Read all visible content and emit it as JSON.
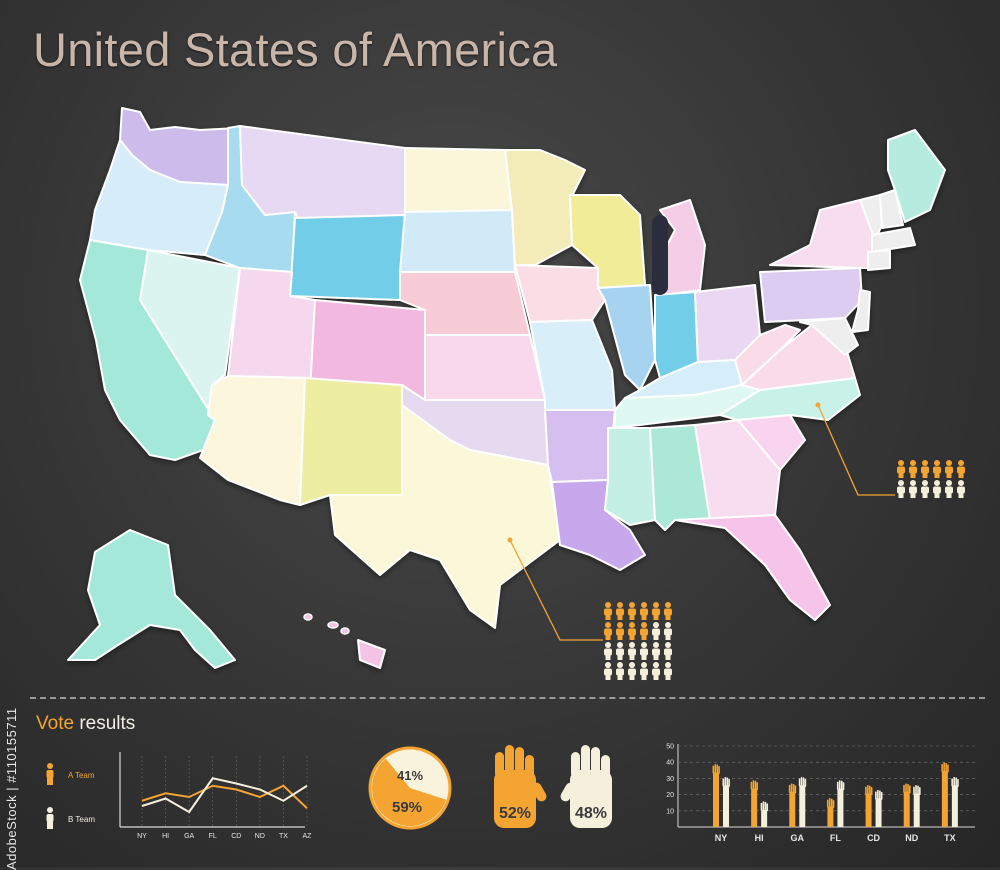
{
  "header": {
    "title": "United States of America"
  },
  "watermark": "AdobeStock | #110155711",
  "colors": {
    "background": "#353535",
    "team_a": "#f4a431",
    "team_b": "#f5f0dc",
    "title": "#c9b6a8",
    "state_outline": "#ffffff"
  },
  "map": {
    "states": [
      {
        "name": "Washington",
        "color": "#cdbbec"
      },
      {
        "name": "Oregon",
        "color": "#d6ecf8"
      },
      {
        "name": "California",
        "color": "#a3e8d8"
      },
      {
        "name": "Nevada",
        "color": "#dcf4f0"
      },
      {
        "name": "Idaho",
        "color": "#a6dbf0"
      },
      {
        "name": "Montana",
        "color": "#e7d8f3"
      },
      {
        "name": "Wyoming",
        "color": "#72cde8"
      },
      {
        "name": "Utah",
        "color": "#f6d8ee"
      },
      {
        "name": "Arizona",
        "color": "#fbf6dc"
      },
      {
        "name": "Colorado",
        "color": "#f2b8e0"
      },
      {
        "name": "New Mexico",
        "color": "#eeeea2"
      },
      {
        "name": "North Dakota",
        "color": "#fbf6da"
      },
      {
        "name": "South Dakota",
        "color": "#d0eaf8"
      },
      {
        "name": "Nebraska",
        "color": "#f8ccd6"
      },
      {
        "name": "Kansas",
        "color": "#f8d8ea"
      },
      {
        "name": "Oklahoma",
        "color": "#e6daf0"
      },
      {
        "name": "Texas",
        "color": "#fbf8da"
      },
      {
        "name": "Minnesota",
        "color": "#f3ecb8"
      },
      {
        "name": "Iowa",
        "color": "#fbdde6"
      },
      {
        "name": "Missouri",
        "color": "#d8eef8"
      },
      {
        "name": "Arkansas",
        "color": "#d6bff0"
      },
      {
        "name": "Louisiana",
        "color": "#c7a8ec"
      },
      {
        "name": "Wisconsin",
        "color": "#f1ec96"
      },
      {
        "name": "Illinois",
        "color": "#a6d4f0"
      },
      {
        "name": "Michigan",
        "color": "#f5cde6"
      },
      {
        "name": "Indiana",
        "color": "#72cde8"
      },
      {
        "name": "Ohio",
        "color": "#ead8f3"
      },
      {
        "name": "Kentucky",
        "color": "#d6eefa"
      },
      {
        "name": "Tennessee",
        "color": "#dff8f2"
      },
      {
        "name": "Mississippi",
        "color": "#c4f0e4"
      },
      {
        "name": "Alabama",
        "color": "#ace8d6"
      },
      {
        "name": "Georgia",
        "color": "#f8ddf0"
      },
      {
        "name": "Florida",
        "color": "#f6c4e8"
      },
      {
        "name": "South Carolina",
        "color": "#f8d4ee"
      },
      {
        "name": "North Carolina",
        "color": "#c8f2e8"
      },
      {
        "name": "Virginia",
        "color": "#fadce8"
      },
      {
        "name": "West Virginia",
        "color": "#fadce8"
      },
      {
        "name": "Pennsylvania",
        "color": "#dcccf2"
      },
      {
        "name": "New York",
        "color": "#f8ddee"
      },
      {
        "name": "Maine",
        "color": "#b6ecdf"
      },
      {
        "name": "Alaska",
        "color": "#a3e8d8"
      },
      {
        "name": "Hawaii",
        "color": "#f3c4e6"
      }
    ],
    "callouts": [
      {
        "state": "North Carolina",
        "a_count": 6,
        "b_count": 6
      },
      {
        "state": "Texas",
        "a_count": 10,
        "b_count": 14
      }
    ]
  },
  "vote": {
    "title_accent": "Vote",
    "title_rest": " results",
    "legend": [
      {
        "label": "A Team",
        "color": "#f4a431"
      },
      {
        "label": "B Team",
        "color": "#f5f0dc"
      }
    ],
    "pie_a_label": "59%",
    "pie_b_label": "41%",
    "hand_a_label": "52%",
    "hand_b_label": "48%"
  },
  "chart_data": [
    {
      "type": "line",
      "categories": [
        "NY",
        "HI",
        "GA",
        "FL",
        "CD",
        "ND",
        "TX",
        "AZ"
      ],
      "series": [
        {
          "name": "A Team",
          "values": [
            35,
            45,
            40,
            55,
            50,
            40,
            55,
            25
          ]
        },
        {
          "name": "B Team",
          "values": [
            28,
            38,
            20,
            65,
            58,
            50,
            35,
            55
          ]
        }
      ],
      "ylim": [
        0,
        100
      ],
      "grid": true
    },
    {
      "type": "pie",
      "labels": [
        "A Team",
        "B Team"
      ],
      "values": [
        59,
        41
      ],
      "data_labels": [
        "59%",
        "41%"
      ]
    },
    {
      "type": "bar",
      "categories": [
        "NY",
        "HI",
        "GA",
        "FL",
        "CD",
        "ND",
        "TX"
      ],
      "series": [
        {
          "name": "A Team",
          "values": [
            38,
            28,
            26,
            17,
            25,
            26,
            39
          ]
        },
        {
          "name": "B Team",
          "values": [
            30,
            15,
            30,
            28,
            22,
            25,
            30
          ]
        }
      ],
      "yticks": [
        10,
        20,
        30,
        40,
        50
      ],
      "ylim": [
        0,
        50
      ],
      "grid": true
    },
    {
      "type": "bar",
      "categories": [
        "A Team",
        "B Team"
      ],
      "values": [
        52,
        48
      ],
      "data_labels": [
        "52%",
        "48%"
      ]
    }
  ]
}
